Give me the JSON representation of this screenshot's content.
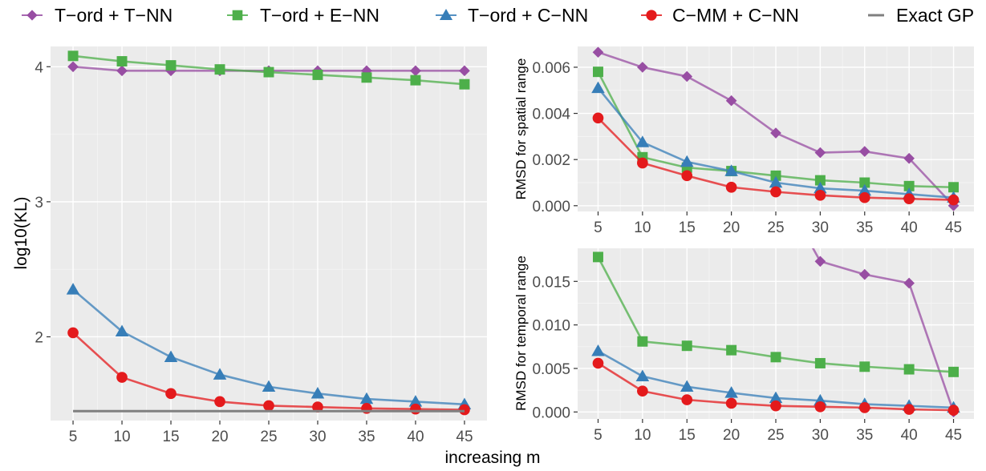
{
  "legend": {
    "entries": [
      {
        "label": "T−ord + T−NN",
        "color": "#984ea3",
        "shape": "diamond"
      },
      {
        "label": "T−ord + E−NN",
        "color": "#4daf4a",
        "shape": "square"
      },
      {
        "label": "T−ord + C−NN",
        "color": "#377eb8",
        "shape": "triangle"
      },
      {
        "label": "C−MM + C−NN",
        "color": "#e41a1c",
        "shape": "circle"
      },
      {
        "label": "Exact GP",
        "color": "#808080",
        "shape": "line"
      }
    ]
  },
  "shared_xlabel": "increasing m",
  "chart_data": [
    {
      "id": "kl",
      "type": "line",
      "ylabel": "log10(KL)",
      "xlabel": "",
      "x": [
        5,
        10,
        15,
        20,
        25,
        30,
        35,
        40,
        45
      ],
      "xticks": [
        "5",
        "10",
        "15",
        "20",
        "25",
        "30",
        "35",
        "40",
        "45"
      ],
      "yticks": [
        "2",
        "3",
        "4"
      ],
      "ylim": [
        1.38,
        4.15
      ],
      "grid": true,
      "series": [
        {
          "name": "T−ord + T−NN",
          "values": [
            4.0,
            3.97,
            3.97,
            3.97,
            3.97,
            3.97,
            3.97,
            3.97,
            3.97
          ]
        },
        {
          "name": "T−ord + E−NN",
          "values": [
            4.08,
            4.04,
            4.01,
            3.98,
            3.96,
            3.94,
            3.92,
            3.9,
            3.87
          ]
        },
        {
          "name": "T−ord + C−NN",
          "values": [
            2.35,
            2.04,
            1.85,
            1.72,
            1.63,
            1.58,
            1.54,
            1.52,
            1.5
          ]
        },
        {
          "name": "C−MM + C−NN",
          "values": [
            2.03,
            1.7,
            1.58,
            1.52,
            1.49,
            1.48,
            1.47,
            1.465,
            1.46
          ]
        },
        {
          "name": "Exact GP",
          "values": [
            1.45,
            1.45,
            1.45,
            1.45,
            1.45,
            1.45,
            1.45,
            1.45,
            1.45
          ]
        }
      ]
    },
    {
      "id": "spatial",
      "type": "line",
      "ylabel": "RMSD for spatial range",
      "xlabel": "",
      "x": [
        5,
        10,
        15,
        20,
        25,
        30,
        35,
        40,
        45
      ],
      "xticks": [
        "5",
        "10",
        "15",
        "20",
        "25",
        "30",
        "35",
        "40",
        "45"
      ],
      "yticks": [
        "0.000",
        "0.002",
        "0.004",
        "0.006"
      ],
      "ylim": [
        -0.00025,
        0.0069
      ],
      "grid": true,
      "series": [
        {
          "name": "T−ord + T−NN",
          "values": [
            0.00665,
            0.006,
            0.0056,
            0.00455,
            0.00315,
            0.0023,
            0.00235,
            0.00205,
            0.0
          ]
        },
        {
          "name": "T−ord + E−NN",
          "values": [
            0.0058,
            0.0021,
            0.00165,
            0.0015,
            0.0013,
            0.0011,
            0.001,
            0.00085,
            0.0008
          ]
        },
        {
          "name": "T−ord + C−NN",
          "values": [
            0.0051,
            0.00275,
            0.0019,
            0.0015,
            0.001,
            0.00075,
            0.00065,
            0.0005,
            0.00035
          ]
        },
        {
          "name": "C−MM + C−NN",
          "values": [
            0.0038,
            0.00185,
            0.0013,
            0.0008,
            0.0006,
            0.00045,
            0.00035,
            0.0003,
            0.00025
          ]
        }
      ]
    },
    {
      "id": "temporal",
      "type": "line",
      "ylabel": "RMSD for temporal range",
      "xlabel": "",
      "x": [
        5,
        10,
        15,
        20,
        25,
        30,
        35,
        40,
        45
      ],
      "xticks": [
        "5",
        "10",
        "15",
        "20",
        "25",
        "30",
        "35",
        "40",
        "45"
      ],
      "yticks": [
        "0.000",
        "0.005",
        "0.010",
        "0.015"
      ],
      "ylim": [
        -0.0008,
        0.0188
      ],
      "grid": true,
      "series": [
        {
          "name": "T−ord + T−NN",
          "values": [
            null,
            null,
            null,
            null,
            null,
            0.0173,
            0.0158,
            0.0148,
            0.0
          ]
        },
        {
          "name": "T−ord + E−NN",
          "values": [
            0.0178,
            0.0081,
            0.0076,
            0.0071,
            0.0063,
            0.0056,
            0.0052,
            0.0049,
            0.0046
          ]
        },
        {
          "name": "T−ord + C−NN",
          "values": [
            0.007,
            0.0041,
            0.0029,
            0.0022,
            0.0016,
            0.0013,
            0.0009,
            0.0007,
            0.0005
          ]
        },
        {
          "name": "C−MM + C−NN",
          "values": [
            0.0056,
            0.0024,
            0.0014,
            0.001,
            0.0007,
            0.0006,
            0.0005,
            0.0003,
            0.0002
          ]
        }
      ],
      "note_series_0": "T−ord + T−NN line continues above the panel top between m=25 and m=30"
    }
  ]
}
